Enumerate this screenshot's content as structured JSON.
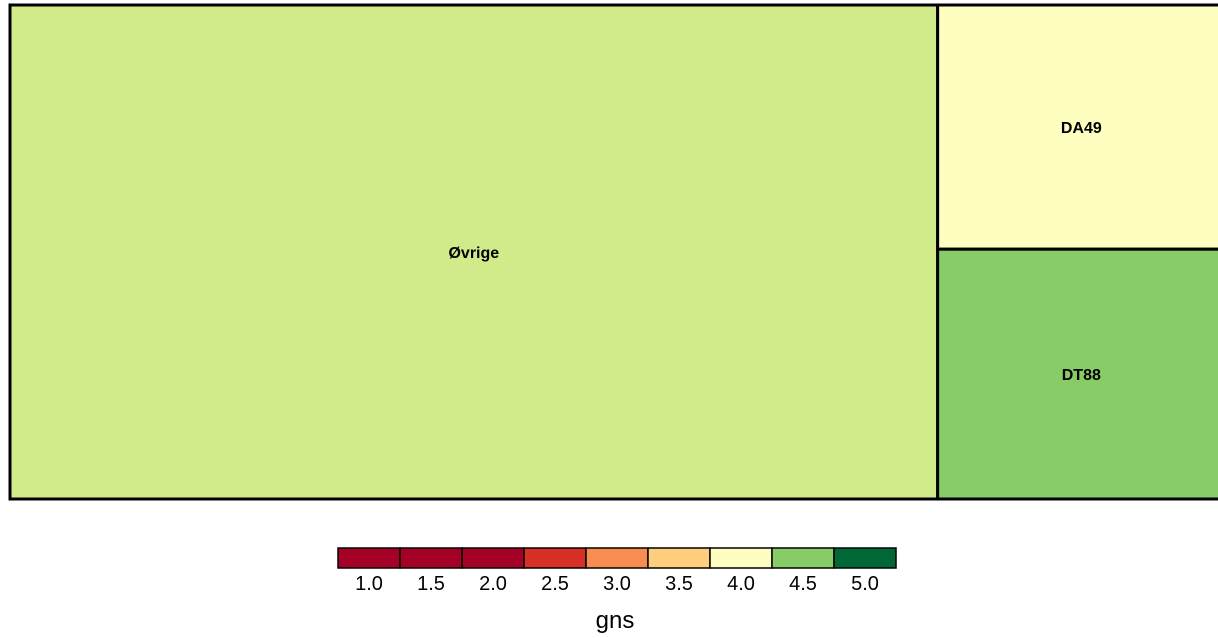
{
  "chart_data": {
    "type": "treemap",
    "tiles": [
      {
        "label": "Øvrige",
        "share": 0.7635,
        "gns": 4.4,
        "color": "#d1ea8a"
      },
      {
        "label": "DA49",
        "share": 0.1169,
        "gns": 4.0,
        "color": "#fefec1"
      },
      {
        "label": "DT88",
        "share": 0.1196,
        "gns": 4.6,
        "color": "#88cc68"
      }
    ],
    "legend": {
      "title": "gns",
      "ticks": [
        "1.0",
        "1.5",
        "2.0",
        "2.5",
        "3.0",
        "3.5",
        "4.0",
        "4.5",
        "5.0"
      ],
      "colors": [
        "#a50026",
        "#a50026",
        "#a50026",
        "#d73027",
        "#f88d52",
        "#fece7c",
        "#fefec1",
        "#88cc68",
        "#006837"
      ]
    }
  }
}
